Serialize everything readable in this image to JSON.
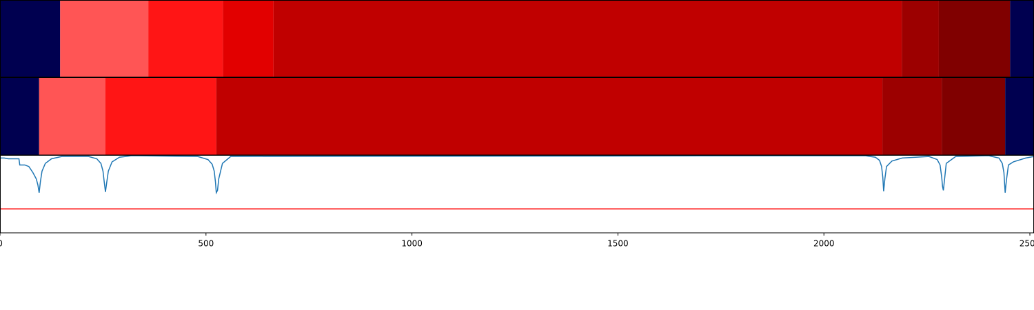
{
  "chart_data": {
    "type": "line",
    "xlim": [
      0,
      2510
    ],
    "xticks": [
      0,
      500,
      1000,
      1500,
      2000,
      2500
    ],
    "ylim": [
      0,
      1
    ],
    "strips": [
      {
        "boundaries": [
          0,
          146,
          360,
          541,
          664,
          2189,
          2279,
          2452,
          2510
        ],
        "colors": [
          "#000050",
          "#ff5555",
          "#ff1515",
          "#e20000",
          "#c00000",
          "#9c0000",
          "#800000",
          "#000050"
        ]
      },
      {
        "boundaries": [
          0,
          95,
          256,
          525,
          2142,
          2286,
          2440,
          2510
        ],
        "colors": [
          "#000050",
          "#ff5555",
          "#ff1515",
          "#c00000",
          "#9c0000",
          "#800000",
          "#000050"
        ]
      }
    ],
    "x": [
      0,
      10,
      20,
      46,
      48,
      60,
      70,
      80,
      88,
      92,
      95,
      98,
      102,
      110,
      125,
      150,
      215,
      235,
      245,
      250,
      253,
      256,
      259,
      263,
      272,
      290,
      320,
      480,
      505,
      515,
      520,
      523,
      525,
      528,
      531,
      540,
      560,
      2100,
      2125,
      2135,
      2140,
      2143,
      2145,
      2148,
      2152,
      2165,
      2190,
      2255,
      2275,
      2282,
      2286,
      2288,
      2290,
      2293,
      2297,
      2320,
      2400,
      2425,
      2433,
      2437,
      2440,
      2443,
      2448,
      2460,
      2490,
      2510
    ],
    "series": [
      {
        "color": "#1f77b4",
        "values": [
          0.97,
          0.97,
          0.96,
          0.96,
          0.88,
          0.88,
          0.86,
          0.78,
          0.7,
          0.62,
          0.52,
          0.66,
          0.8,
          0.9,
          0.96,
          0.99,
          0.99,
          0.96,
          0.9,
          0.8,
          0.66,
          0.53,
          0.65,
          0.8,
          0.92,
          0.98,
          1.0,
          0.99,
          0.95,
          0.89,
          0.8,
          0.66,
          0.52,
          0.55,
          0.7,
          0.9,
          0.99,
          1.0,
          0.98,
          0.94,
          0.86,
          0.72,
          0.54,
          0.7,
          0.86,
          0.93,
          0.97,
          0.99,
          0.95,
          0.88,
          0.72,
          0.6,
          0.55,
          0.7,
          0.9,
          0.99,
          1.0,
          0.97,
          0.9,
          0.78,
          0.52,
          0.68,
          0.88,
          0.92,
          0.97,
          0.99
        ]
      }
    ],
    "threshold": 0.31,
    "threshold_color": "#ff0000"
  }
}
